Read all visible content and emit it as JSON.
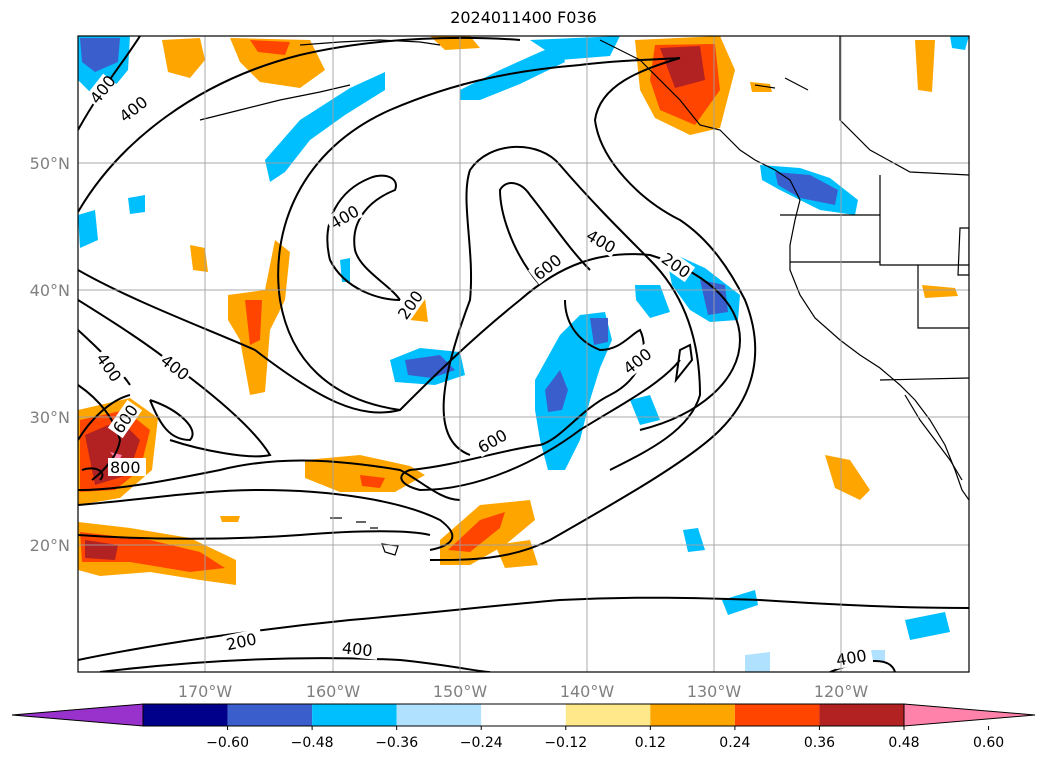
{
  "title": "2024011400 F036",
  "lat_labels": [
    "50°N",
    "40°N",
    "30°N",
    "20°N"
  ],
  "lon_labels": [
    "170°W",
    "160°W",
    "150°W",
    "140°W",
    "130°W",
    "120°W"
  ],
  "colorbar": {
    "ticks": [
      "−0.60",
      "−0.48",
      "−0.36",
      "−0.24",
      "−0.12",
      "0.12",
      "0.24",
      "0.36",
      "0.48",
      "0.60"
    ],
    "colors": [
      "#9932cc",
      "#00008b",
      "#3a5fcd",
      "#00bfff",
      "#b0e2ff",
      "#ffffff",
      "#ffe88a",
      "#ffa500",
      "#ff4500",
      "#b22222",
      "#ff82ab"
    ]
  },
  "contour_labels": [
    "400",
    "400",
    "400",
    "200",
    "600",
    "400",
    "200",
    "400",
    "600",
    "400",
    "400",
    "600",
    "800",
    "200",
    "400",
    "400"
  ]
}
